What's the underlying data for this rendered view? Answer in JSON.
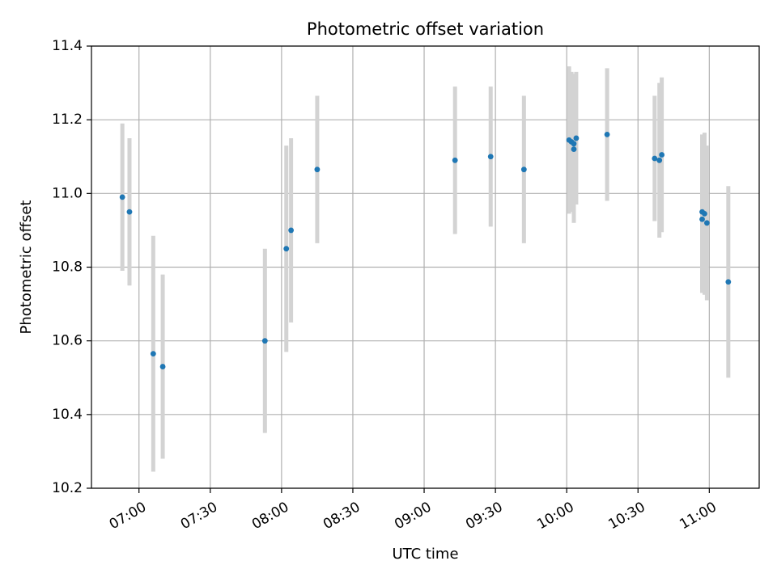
{
  "chart_data": {
    "type": "scatter",
    "title": "Photometric offset variation",
    "xlabel": "UTC time",
    "ylabel": "Photometric offset",
    "x_unit": "UTC time (HH:MM)",
    "xlim": [
      "06:40",
      "11:21"
    ],
    "ylim": [
      10.2,
      11.4
    ],
    "x_ticks": [
      "07:00",
      "07:30",
      "08:00",
      "08:30",
      "09:00",
      "09:30",
      "10:00",
      "10:30",
      "11:00"
    ],
    "y_ticks": [
      "10.2",
      "10.4",
      "10.6",
      "10.8",
      "11.0",
      "11.2",
      "11.4"
    ],
    "grid": true,
    "colors": {
      "point": "#1f77b4",
      "errorbar": "#d3d3d3",
      "grid": "#b0b0b0",
      "axes": "#000000"
    },
    "series": [
      {
        "points": [
          {
            "x": "06:53",
            "y": 10.99,
            "err": 0.2
          },
          {
            "x": "06:56",
            "y": 10.95,
            "err": 0.2
          },
          {
            "x": "07:06",
            "y": 10.565,
            "err": 0.32
          },
          {
            "x": "07:10",
            "y": 10.53,
            "err": 0.25
          },
          {
            "x": "07:53",
            "y": 10.6,
            "err": 0.25
          },
          {
            "x": "08:02",
            "y": 10.85,
            "err": 0.28
          },
          {
            "x": "08:04",
            "y": 10.9,
            "err": 0.25
          },
          {
            "x": "08:15",
            "y": 11.065,
            "err": 0.2
          },
          {
            "x": "09:13",
            "y": 11.09,
            "err": 0.2
          },
          {
            "x": "09:28",
            "y": 11.1,
            "err": 0.19
          },
          {
            "x": "09:42",
            "y": 11.065,
            "err": 0.2
          },
          {
            "x": "10:01",
            "y": 11.145,
            "err": 0.2
          },
          {
            "x": "10:02",
            "y": 11.14,
            "err": 0.19
          },
          {
            "x": "10:03",
            "y": 11.135,
            "err": 0.19
          },
          {
            "x": "10:03",
            "y": 11.12,
            "err": 0.2
          },
          {
            "x": "10:04",
            "y": 11.15,
            "err": 0.18
          },
          {
            "x": "10:17",
            "y": 11.16,
            "err": 0.18
          },
          {
            "x": "10:37",
            "y": 11.095,
            "err": 0.17
          },
          {
            "x": "10:39",
            "y": 11.09,
            "err": 0.21
          },
          {
            "x": "10:40",
            "y": 11.105,
            "err": 0.21
          },
          {
            "x": "10:57",
            "y": 10.95,
            "err": 0.21
          },
          {
            "x": "10:57",
            "y": 10.93,
            "err": 0.2
          },
          {
            "x": "10:58",
            "y": 10.945,
            "err": 0.22
          },
          {
            "x": "10:59",
            "y": 10.92,
            "err": 0.21
          },
          {
            "x": "11:08",
            "y": 10.76,
            "err": 0.26
          }
        ]
      }
    ]
  }
}
